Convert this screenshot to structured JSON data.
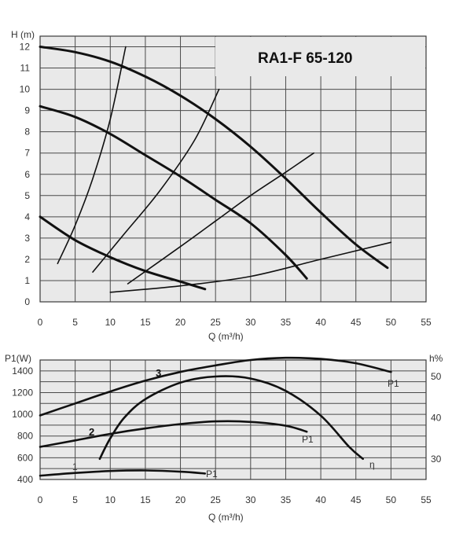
{
  "chart_data": [
    {
      "type": "line",
      "title": "RA1-F 65-120",
      "xlabel": "Q (m³/h)",
      "ylabel": "H (m)",
      "xlim": [
        0,
        55
      ],
      "ylim": [
        0,
        12.5
      ],
      "xticks": [
        "0",
        "5",
        "10",
        "15",
        "20",
        "25",
        "30",
        "35",
        "40",
        "45",
        "50",
        "55"
      ],
      "yticks": [
        "0",
        "1",
        "2",
        "3",
        "4",
        "5",
        "6",
        "7",
        "8",
        "9",
        "10",
        "11",
        "12"
      ],
      "grid": true,
      "series": [
        {
          "points": [
            [
              0,
              12
            ],
            [
              5,
              11.75
            ],
            [
              10,
              11.3
            ],
            [
              15,
              10.6
            ],
            [
              20,
              9.7
            ],
            [
              25,
              8.6
            ],
            [
              30,
              7.3
            ],
            [
              35,
              5.8
            ],
            [
              40,
              4.2
            ],
            [
              45,
              2.7
            ],
            [
              49.5,
              1.6
            ]
          ]
        },
        {
          "points": [
            [
              0,
              9.2
            ],
            [
              5,
              8.7
            ],
            [
              10,
              7.9
            ],
            [
              15,
              6.9
            ],
            [
              20,
              5.9
            ],
            [
              25,
              4.8
            ],
            [
              30,
              3.7
            ],
            [
              35,
              2.2
            ],
            [
              38,
              1.1
            ]
          ]
        },
        {
          "points": [
            [
              0,
              4.0
            ],
            [
              5,
              2.9
            ],
            [
              10,
              2.1
            ],
            [
              15,
              1.45
            ],
            [
              20,
              0.95
            ],
            [
              23.5,
              0.6
            ]
          ]
        },
        {
          "points": [
            [
              2.5,
              1.8
            ],
            [
              5,
              3.6
            ],
            [
              7.5,
              5.8
            ],
            [
              10,
              8.6
            ],
            [
              12.2,
              12
            ]
          ]
        },
        {
          "points": [
            [
              7.5,
              1.4
            ],
            [
              12,
              3.2
            ],
            [
              17,
              5.2
            ],
            [
              22,
              7.6
            ],
            [
              25.5,
              10
            ]
          ]
        },
        {
          "points": [
            [
              12.5,
              0.85
            ],
            [
              20,
              2.6
            ],
            [
              25,
              3.8
            ],
            [
              30,
              5.0
            ],
            [
              35,
              6.1
            ],
            [
              39,
              7.0
            ]
          ]
        },
        {
          "points": [
            [
              10,
              0.45
            ],
            [
              20,
              0.75
            ],
            [
              30,
              1.2
            ],
            [
              40,
              2.0
            ],
            [
              50,
              2.8
            ]
          ]
        }
      ]
    },
    {
      "type": "line",
      "xlabel": "Q (m³/h)",
      "ylabel": "P1(W)",
      "y2label": "h%",
      "xlim": [
        0,
        55
      ],
      "ylim": [
        400,
        1500
      ],
      "y2lim": [
        25,
        54
      ],
      "xticks": [
        "0",
        "5",
        "10",
        "15",
        "20",
        "25",
        "30",
        "35",
        "40",
        "45",
        "50",
        "55"
      ],
      "yticks": [
        "400",
        "600",
        "800",
        "1000",
        "1200",
        "1400"
      ],
      "y2ticks": [
        "30",
        "40",
        "50"
      ],
      "grid": true,
      "annotations": [
        "1",
        "2",
        "3",
        "P1",
        "P1",
        "P1",
        "η"
      ],
      "series": [
        {
          "axis": "left",
          "points": [
            [
              0,
              990
            ],
            [
              5,
              1100
            ],
            [
              10,
              1210
            ],
            [
              15,
              1310
            ],
            [
              20,
              1390
            ],
            [
              25,
              1450
            ],
            [
              30,
              1500
            ],
            [
              35,
              1520
            ],
            [
              40,
              1510
            ],
            [
              45,
              1470
            ],
            [
              50,
              1390
            ]
          ]
        },
        {
          "axis": "left",
          "points": [
            [
              0,
              700
            ],
            [
              5,
              760
            ],
            [
              10,
              820
            ],
            [
              15,
              870
            ],
            [
              20,
              910
            ],
            [
              25,
              935
            ],
            [
              30,
              930
            ],
            [
              35,
              895
            ],
            [
              38,
              840
            ]
          ]
        },
        {
          "axis": "left",
          "points": [
            [
              0,
              435
            ],
            [
              5,
              460
            ],
            [
              10,
              478
            ],
            [
              15,
              483
            ],
            [
              20,
              472
            ],
            [
              23.5,
              455
            ]
          ]
        },
        {
          "axis": "right",
          "points": [
            [
              8.5,
              30
            ],
            [
              10,
              35
            ],
            [
              12,
              40
            ],
            [
              15,
              44.5
            ],
            [
              20,
              48.5
            ],
            [
              25,
              50
            ],
            [
              30,
              49.5
            ],
            [
              35,
              46.5
            ],
            [
              40,
              40.5
            ],
            [
              44,
              33
            ],
            [
              46,
              30
            ]
          ]
        }
      ]
    }
  ]
}
